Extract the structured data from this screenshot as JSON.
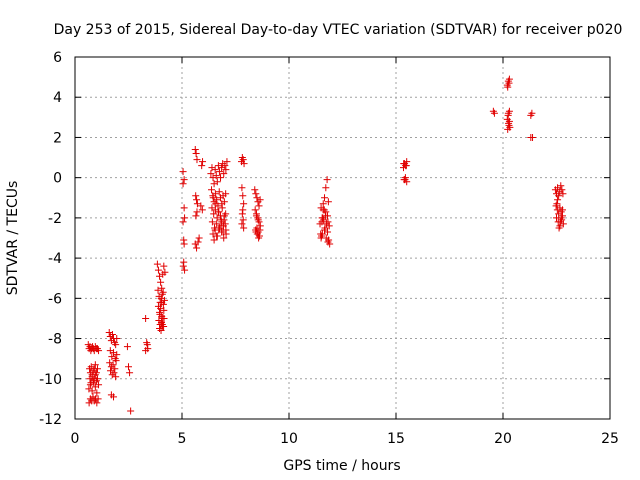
{
  "chart_data": {
    "type": "scatter",
    "title": "Day 253 of 2015, Sidereal Day-to-day VTEC variation (SDTVAR) for receiver p020",
    "xlabel": "GPS time / hours",
    "ylabel": "SDTVAR / TECUs",
    "xlim": [
      0,
      25
    ],
    "ylim": [
      -12,
      6
    ],
    "xticks": [
      0,
      5,
      10,
      15,
      20,
      25
    ],
    "yticks": [
      -12,
      -10,
      -8,
      -6,
      -4,
      -2,
      0,
      2,
      4,
      6
    ],
    "grid": true,
    "marker": "plus",
    "color": "#e00000",
    "series": [
      {
        "name": "SDTVAR",
        "x": [
          0.62,
          0.66,
          0.7,
          0.74,
          0.78,
          0.82,
          0.86,
          0.9,
          0.95,
          1.0,
          1.05,
          1.1,
          0.68,
          0.72,
          0.76,
          0.8,
          0.85,
          0.9,
          0.95,
          1.0,
          1.05,
          0.7,
          0.75,
          0.8,
          0.85,
          0.9,
          0.95,
          1.0,
          1.05,
          0.65,
          0.72,
          0.8,
          0.88,
          0.95,
          1.02,
          1.1,
          0.66,
          0.72,
          0.78,
          0.84,
          0.9,
          0.96,
          1.02,
          1.08,
          1.6,
          1.65,
          1.7,
          1.75,
          1.8,
          1.85,
          1.9,
          1.95,
          1.65,
          1.72,
          1.8,
          1.88,
          1.95,
          1.62,
          1.7,
          1.78,
          1.86,
          1.92,
          1.66,
          1.74,
          1.82,
          1.9,
          1.7,
          1.8,
          2.45,
          2.5,
          2.55,
          2.6,
          3.3,
          3.35,
          3.4,
          3.3,
          3.38,
          3.85,
          3.9,
          3.95,
          4.0,
          4.05,
          4.1,
          4.15,
          4.2,
          3.88,
          3.93,
          3.98,
          4.03,
          4.08,
          4.13,
          4.18,
          3.9,
          3.95,
          4.0,
          4.05,
          4.1,
          4.15,
          3.92,
          3.98,
          4.04,
          4.1,
          4.16,
          3.95,
          4.02,
          4.08,
          4.14,
          3.97,
          4.05,
          4.12,
          5.05,
          5.1,
          5.05,
          5.1,
          5.05,
          5.12,
          5.08,
          5.1,
          5.06,
          5.12,
          5.08,
          5.62,
          5.66,
          5.7,
          5.64,
          5.68,
          5.72,
          5.65,
          5.7,
          5.62,
          5.68,
          5.75,
          5.8,
          5.92,
          5.96,
          5.88,
          5.95,
          6.35,
          6.4,
          6.45,
          6.5,
          6.55,
          6.6,
          6.65,
          6.7,
          6.75,
          6.8,
          6.85,
          6.9,
          6.95,
          7.0,
          7.05,
          7.1,
          6.38,
          6.44,
          6.5,
          6.56,
          6.62,
          6.68,
          6.74,
          6.8,
          6.86,
          6.92,
          6.98,
          7.04,
          6.4,
          6.48,
          6.56,
          6.64,
          6.72,
          6.8,
          6.88,
          6.96,
          7.04,
          6.42,
          6.52,
          6.62,
          6.72,
          6.82,
          6.92,
          7.02,
          6.45,
          6.55,
          6.65,
          6.75,
          6.85,
          6.95,
          7.05,
          6.46,
          6.58,
          6.7,
          6.82,
          6.94,
          7.06,
          6.5,
          6.62,
          6.74,
          6.86,
          6.98,
          7.78,
          7.82,
          7.86,
          7.9,
          7.8,
          7.84,
          7.88,
          7.82,
          7.86,
          7.8,
          7.88,
          7.84,
          8.4,
          8.45,
          8.5,
          8.55,
          8.6,
          8.65,
          8.42,
          8.48,
          8.54,
          8.6,
          8.66,
          8.44,
          8.5,
          8.56,
          8.62,
          8.46,
          8.52,
          8.58,
          8.64,
          8.48,
          8.56,
          11.45,
          11.5,
          11.55,
          11.6,
          11.65,
          11.7,
          11.75,
          11.8,
          11.85,
          11.9,
          11.48,
          11.54,
          11.6,
          11.66,
          11.72,
          11.78,
          11.84,
          11.5,
          11.58,
          11.66,
          11.74,
          11.82,
          11.88,
          11.52,
          11.62,
          11.72,
          11.82,
          11.56,
          11.68,
          11.8,
          15.35,
          15.4,
          15.45,
          15.5,
          15.38,
          15.44,
          15.5,
          15.36,
          15.42,
          15.48,
          19.55,
          19.6,
          20.2,
          20.25,
          20.3,
          20.22,
          20.28,
          20.24,
          20.3,
          20.2,
          20.26,
          20.32,
          20.22,
          20.28,
          20.25,
          20.3,
          21.3,
          21.35,
          21.3,
          21.38,
          22.45,
          22.5,
          22.55,
          22.6,
          22.65,
          22.7,
          22.75,
          22.8,
          22.48,
          22.54,
          22.6,
          22.66,
          22.72,
          22.78,
          22.5,
          22.58,
          22.66,
          22.74,
          22.82,
          22.52,
          22.62,
          22.72,
          22.55,
          22.68,
          22.78
        ],
        "y": [
          -8.3,
          -8.5,
          -8.4,
          -8.6,
          -8.5,
          -8.4,
          -8.5,
          -8.6,
          -8.4,
          -8.5,
          -8.5,
          -8.6,
          -9.5,
          -9.7,
          -9.4,
          -9.8,
          -9.6,
          -9.5,
          -9.3,
          -9.7,
          -9.5,
          -10.0,
          -10.2,
          -9.9,
          -10.1,
          -10.0,
          -9.8,
          -10.1,
          -10.0,
          -10.5,
          -10.3,
          -10.6,
          -10.2,
          -10.4,
          -10.7,
          -10.3,
          -11.2,
          -11.0,
          -11.1,
          -10.9,
          -11.1,
          -11.0,
          -11.2,
          -11.0,
          -7.7,
          -7.9,
          -8.1,
          -7.8,
          -8.0,
          -8.2,
          -8.3,
          -8.0,
          -8.6,
          -8.9,
          -8.7,
          -9.0,
          -8.8,
          -9.2,
          -9.4,
          -9.3,
          -9.5,
          -9.1,
          -9.6,
          -9.8,
          -9.7,
          -9.9,
          -10.8,
          -10.9,
          -8.4,
          -9.4,
          -9.7,
          -11.6,
          -7.0,
          -8.2,
          -8.5,
          -8.6,
          -8.3,
          -4.3,
          -4.6,
          -4.9,
          -5.2,
          -5.5,
          -4.8,
          -4.4,
          -4.7,
          -5.6,
          -5.9,
          -6.2,
          -6.0,
          -5.8,
          -6.3,
          -6.1,
          -6.4,
          -6.7,
          -6.5,
          -6.9,
          -7.0,
          -6.6,
          -7.1,
          -7.3,
          -7.2,
          -7.4,
          -7.0,
          -7.5,
          -7.6,
          -7.3,
          -7.4,
          -6.8,
          -6.2,
          -5.7,
          0.3,
          -0.1,
          -0.3,
          -1.5,
          -2.2,
          -2.0,
          -3.1,
          -3.3,
          -4.4,
          -4.6,
          -4.2,
          1.4,
          1.2,
          0.9,
          -0.9,
          -1.1,
          -1.3,
          -1.9,
          -1.7,
          -3.3,
          -3.5,
          -3.2,
          -3.0,
          0.6,
          0.8,
          -1.4,
          -1.6,
          0.2,
          0.5,
          0.0,
          -0.3,
          0.4,
          0.1,
          -0.2,
          0.6,
          0.3,
          0.0,
          0.5,
          0.7,
          0.2,
          0.6,
          0.4,
          0.8,
          -0.6,
          -0.9,
          -1.2,
          -0.8,
          -1.1,
          -1.4,
          -0.7,
          -1.0,
          -1.3,
          -0.9,
          -1.2,
          -0.8,
          -1.5,
          -1.8,
          -1.6,
          -2.0,
          -1.7,
          -1.9,
          -1.5,
          -2.1,
          -1.8,
          -2.2,
          -2.5,
          -2.3,
          -2.6,
          -2.4,
          -2.7,
          -2.3,
          -2.8,
          -2.6,
          -2.9,
          -2.5,
          -2.7,
          -3.0,
          -2.6,
          -1.0,
          -1.3,
          -1.7,
          -2.1,
          -2.4,
          -2.8,
          -3.1,
          -2.9,
          -2.5,
          -2.2,
          -1.9,
          0.8,
          1.0,
          0.9,
          0.7,
          -0.5,
          -0.9,
          -1.3,
          -1.8,
          -2.1,
          -2.3,
          -2.5,
          -1.6,
          -0.6,
          -0.8,
          -1.0,
          -1.2,
          -1.4,
          -1.1,
          -1.6,
          -1.8,
          -2.0,
          -2.2,
          -2.4,
          -2.6,
          -2.5,
          -2.7,
          -2.9,
          -2.7,
          -2.8,
          -3.0,
          -2.6,
          -1.9,
          -2.1,
          -2.3,
          -3.0,
          -2.0,
          -1.3,
          -1.6,
          -1.9,
          -2.3,
          -2.7,
          -3.1,
          -3.3,
          -2.8,
          -2.2,
          -1.6,
          -1.0,
          -0.5,
          -0.1,
          -1.2,
          -1.5,
          -2.0,
          -2.6,
          -3.0,
          -3.2,
          -2.4,
          -2.9,
          -2.1,
          -1.7,
          -2.2,
          -2.8,
          -2.5,
          -1.9,
          0.5,
          0.7,
          0.6,
          0.8,
          -0.1,
          0.0,
          -0.2,
          0.7,
          -0.1,
          0.6,
          3.3,
          3.2,
          4.6,
          4.8,
          4.9,
          4.5,
          4.7,
          3.1,
          3.3,
          2.9,
          2.7,
          2.5,
          2.4,
          2.6,
          3.2,
          2.8,
          3.1,
          3.2,
          2.0,
          2.0,
          -0.6,
          -0.8,
          -0.5,
          -0.9,
          -0.7,
          -0.4,
          -0.6,
          -0.8,
          -1.4,
          -1.6,
          -1.8,
          -1.5,
          -1.7,
          -1.9,
          -2.0,
          -2.2,
          -2.4,
          -2.1,
          -2.3,
          -1.3,
          -2.5,
          -2.0,
          -1.1,
          -2.2,
          -1.6
        ]
      }
    ]
  }
}
